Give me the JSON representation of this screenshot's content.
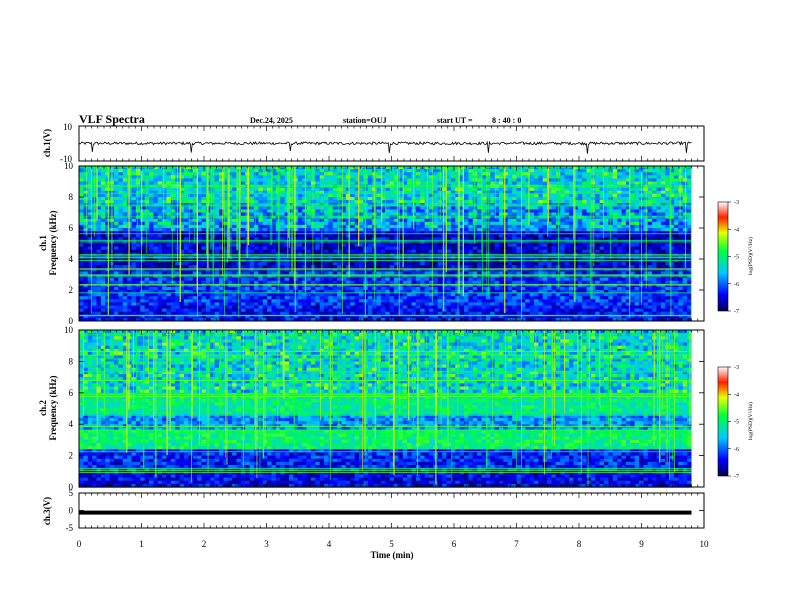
{
  "chart_data": {
    "type": "heatmap",
    "title": "VLF Spectra",
    "date": "Dec.24, 2025",
    "station": "station=OUJ",
    "start_label": "start UT =",
    "start_time": "8 : 40 : 0",
    "xlabel": "Time (min)",
    "x_range": [
      0,
      10
    ],
    "x_ticks": [
      "0",
      "1",
      "2",
      "3",
      "4",
      "5",
      "6",
      "7",
      "8",
      "9",
      "10"
    ],
    "panels": [
      {
        "name": "ch1-waveform",
        "type": "line",
        "ylabel": "ch.1(V)",
        "y_range": [
          -10,
          10
        ],
        "y_ticks": [
          "10",
          "-10"
        ]
      },
      {
        "name": "ch1-spectrogram",
        "type": "heatmap",
        "ylabel_top": "ch.1",
        "ylabel": "Frequency (kHz)",
        "y_range": [
          0,
          10
        ],
        "y_ticks": [
          "0",
          "2",
          "4",
          "6",
          "8",
          "10"
        ],
        "colorbar": {
          "label": "log(PSD)(V²/Hz)",
          "range": [
            -7,
            -3
          ],
          "ticks": [
            "-3",
            "-4",
            "-5",
            "-6",
            "-7"
          ]
        }
      },
      {
        "name": "ch2-spectrogram",
        "type": "heatmap",
        "ylabel_top": "ch.2",
        "ylabel": "Frequency (kHz)",
        "y_range": [
          0,
          10
        ],
        "y_ticks": [
          "0",
          "2",
          "4",
          "6",
          "8",
          "10"
        ],
        "colorbar": {
          "label": "log(PSD)(V²/Hz)",
          "range": [
            -7,
            -3
          ],
          "ticks": [
            "-3",
            "-4",
            "-5",
            "-6",
            "-7"
          ]
        }
      },
      {
        "name": "ch3-waveform",
        "type": "line",
        "ylabel": "ch.3(V)",
        "y_range": [
          -5,
          5
        ],
        "y_ticks": [
          "5",
          "0",
          "-5"
        ],
        "level": -0.6
      }
    ],
    "data_end_min": 9.8
  }
}
